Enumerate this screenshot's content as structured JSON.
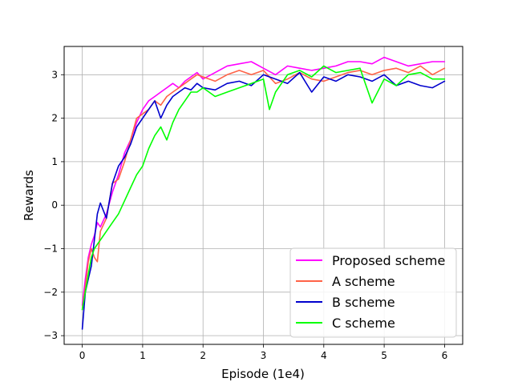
{
  "chart_data": {
    "type": "line",
    "xlabel": "Episode (1e4)",
    "ylabel": "Rewards",
    "xlim": [
      -0.3,
      6.3
    ],
    "ylim": [
      -3.2,
      3.65
    ],
    "xticks": [
      0,
      1,
      2,
      3,
      4,
      5,
      6
    ],
    "yticks": [
      -3,
      -2,
      -1,
      0,
      1,
      2,
      3
    ],
    "xtick_labels": [
      "0",
      "1",
      "2",
      "3",
      "4",
      "5",
      "6"
    ],
    "ytick_labels": [
      "−3",
      "−2",
      "−1",
      "0",
      "1",
      "2",
      "3"
    ],
    "grid": true,
    "legend_position": "lower-right",
    "series": [
      {
        "name": "Proposed scheme",
        "color": "#ff00ff",
        "x": [
          0,
          0.05,
          0.1,
          0.15,
          0.2,
          0.25,
          0.3,
          0.4,
          0.5,
          0.6,
          0.7,
          0.8,
          0.9,
          1.0,
          1.1,
          1.2,
          1.3,
          1.4,
          1.5,
          1.6,
          1.7,
          1.8,
          1.9,
          2.0,
          2.2,
          2.4,
          2.6,
          2.8,
          3.0,
          3.2,
          3.4,
          3.6,
          3.8,
          4.0,
          4.2,
          4.4,
          4.6,
          4.8,
          5.0,
          5.2,
          5.4,
          5.6,
          5.8,
          6.0
        ],
        "y": [
          -2.3,
          -1.7,
          -1.2,
          -0.9,
          -0.7,
          -0.4,
          -0.5,
          -0.2,
          0.3,
          0.7,
          1.2,
          1.5,
          1.9,
          2.2,
          2.4,
          2.5,
          2.6,
          2.7,
          2.8,
          2.7,
          2.85,
          2.95,
          3.05,
          2.9,
          3.05,
          3.2,
          3.25,
          3.3,
          3.15,
          3.0,
          3.2,
          3.15,
          3.1,
          3.15,
          3.2,
          3.3,
          3.3,
          3.25,
          3.4,
          3.3,
          3.2,
          3.25,
          3.3,
          3.3
        ]
      },
      {
        "name": "A scheme",
        "color": "#ff6347",
        "x": [
          0,
          0.05,
          0.1,
          0.15,
          0.2,
          0.25,
          0.3,
          0.4,
          0.5,
          0.6,
          0.7,
          0.8,
          0.9,
          1.0,
          1.1,
          1.2,
          1.3,
          1.4,
          1.5,
          1.6,
          1.7,
          1.8,
          1.9,
          2.0,
          2.2,
          2.4,
          2.6,
          2.8,
          3.0,
          3.2,
          3.4,
          3.6,
          3.8,
          4.0,
          4.2,
          4.4,
          4.6,
          4.8,
          5.0,
          5.2,
          5.4,
          5.6,
          5.8,
          6.0
        ],
        "y": [
          -2.4,
          -1.9,
          -1.3,
          -1.0,
          -1.2,
          -1.3,
          -0.6,
          -0.3,
          0.5,
          0.6,
          1.0,
          1.5,
          2.0,
          2.1,
          2.2,
          2.4,
          2.3,
          2.5,
          2.6,
          2.7,
          2.8,
          2.9,
          3.0,
          2.95,
          2.85,
          3.0,
          3.1,
          3.0,
          3.1,
          2.8,
          2.9,
          3.05,
          2.9,
          2.85,
          2.95,
          3.05,
          3.1,
          3.0,
          3.1,
          3.15,
          3.05,
          3.2,
          3.0,
          3.15
        ]
      },
      {
        "name": "B scheme",
        "color": "#0000cd",
        "x": [
          0,
          0.05,
          0.1,
          0.15,
          0.2,
          0.25,
          0.3,
          0.4,
          0.5,
          0.6,
          0.7,
          0.8,
          0.9,
          1.0,
          1.1,
          1.2,
          1.3,
          1.4,
          1.5,
          1.6,
          1.7,
          1.8,
          1.9,
          2.0,
          2.2,
          2.4,
          2.6,
          2.8,
          3.0,
          3.2,
          3.4,
          3.6,
          3.8,
          4.0,
          4.2,
          4.4,
          4.6,
          4.8,
          5.0,
          5.2,
          5.4,
          5.6,
          5.8,
          6.0
        ],
        "y": [
          -2.85,
          -2.0,
          -1.7,
          -1.4,
          -0.8,
          -0.2,
          0.05,
          -0.3,
          0.5,
          0.9,
          1.1,
          1.4,
          1.8,
          2.0,
          2.2,
          2.4,
          2.0,
          2.3,
          2.5,
          2.6,
          2.7,
          2.65,
          2.8,
          2.7,
          2.65,
          2.8,
          2.85,
          2.75,
          3.0,
          2.9,
          2.8,
          3.05,
          2.6,
          2.95,
          2.85,
          3.0,
          2.95,
          2.85,
          3.0,
          2.75,
          2.85,
          2.75,
          2.7,
          2.85
        ]
      },
      {
        "name": "C scheme",
        "color": "#00ff00",
        "x": [
          0,
          0.05,
          0.1,
          0.15,
          0.2,
          0.25,
          0.3,
          0.4,
          0.5,
          0.6,
          0.7,
          0.8,
          0.9,
          1.0,
          1.1,
          1.2,
          1.3,
          1.4,
          1.5,
          1.6,
          1.7,
          1.8,
          1.9,
          2.0,
          2.2,
          2.4,
          2.6,
          2.8,
          3.0,
          3.1,
          3.2,
          3.4,
          3.6,
          3.8,
          4.0,
          4.2,
          4.4,
          4.6,
          4.8,
          5.0,
          5.2,
          5.4,
          5.6,
          5.8,
          6.0
        ],
        "y": [
          -2.4,
          -2.0,
          -1.6,
          -1.2,
          -1.0,
          -0.9,
          -0.8,
          -0.6,
          -0.4,
          -0.2,
          0.1,
          0.4,
          0.7,
          0.9,
          1.3,
          1.6,
          1.8,
          1.5,
          1.9,
          2.2,
          2.4,
          2.6,
          2.6,
          2.7,
          2.5,
          2.6,
          2.7,
          2.8,
          2.9,
          2.2,
          2.6,
          3.0,
          3.1,
          2.95,
          3.2,
          3.05,
          3.1,
          3.15,
          2.35,
          2.9,
          2.75,
          3.0,
          3.05,
          2.9,
          2.9
        ]
      }
    ]
  }
}
